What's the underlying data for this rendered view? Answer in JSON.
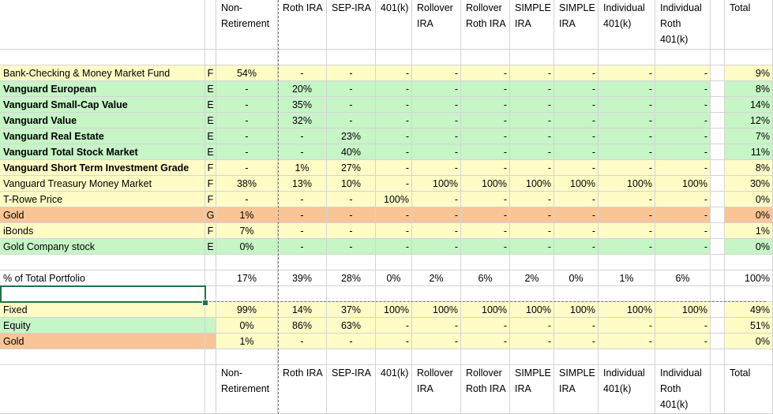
{
  "header_top": [
    "Non-\nRetirement",
    "Roth IRA",
    "SEP-IRA",
    "401(k)",
    "Rollover\nIRA",
    "Rollover\nRoth IRA",
    "SIMPLE\nIRA",
    "SIMPLE\nIRA",
    "Individual\n401(k)",
    "Individual\nRoth\n401(k)",
    "Total"
  ],
  "header_bottom": [
    "Non-\nRetirement",
    "Roth IRA",
    "SEP-IRA",
    "401(k)",
    "Rollover\nIRA",
    "Rollover\nRoth IRA",
    "SIMPLE\nIRA",
    "SIMPLE\nIRA",
    "Individual\n401(k)",
    "Individual\nRoth\n401(k)",
    "Total"
  ],
  "holdings": [
    {
      "name": "Bank-Checking & Money Market Fund",
      "bold": false,
      "type": "F",
      "color": "y",
      "values": [
        "54%",
        "-",
        "-",
        "-",
        "-",
        "-",
        "-",
        "-",
        "-",
        "-"
      ],
      "total": "9%"
    },
    {
      "name": "Vanguard European",
      "bold": true,
      "type": "E",
      "color": "g",
      "values": [
        "-",
        "20%",
        "-",
        "-",
        "-",
        "-",
        "-",
        "-",
        "-",
        "-"
      ],
      "total": "8%"
    },
    {
      "name": "Vanguard Small-Cap Value",
      "bold": true,
      "type": "E",
      "color": "g",
      "values": [
        "-",
        "35%",
        "-",
        "-",
        "-",
        "-",
        "-",
        "-",
        "-",
        "-"
      ],
      "total": "14%"
    },
    {
      "name": "Vanguard Value",
      "bold": true,
      "type": "E",
      "color": "g",
      "values": [
        "-",
        "32%",
        "-",
        "-",
        "-",
        "-",
        "-",
        "-",
        "-",
        "-"
      ],
      "total": "12%"
    },
    {
      "name": "Vanguard Real Estate",
      "bold": true,
      "type": "E",
      "color": "g",
      "values": [
        "-",
        "-",
        "23%",
        "-",
        "-",
        "-",
        "-",
        "-",
        "-",
        "-"
      ],
      "total": "7%"
    },
    {
      "name": "Vanguard Total Stock Market",
      "bold": true,
      "type": "E",
      "color": "g",
      "values": [
        "-",
        "-",
        "40%",
        "-",
        "-",
        "-",
        "-",
        "-",
        "-",
        "-"
      ],
      "total": "11%"
    },
    {
      "name": "Vanguard Short Term Investment Grade",
      "bold": true,
      "type": "F",
      "color": "y",
      "values": [
        "-",
        "1%",
        "27%",
        "-",
        "-",
        "-",
        "-",
        "-",
        "-",
        "-"
      ],
      "total": "8%"
    },
    {
      "name": "Vanguard Treasury Money Market",
      "bold": false,
      "type": "F",
      "color": "y",
      "values": [
        "38%",
        "13%",
        "10%",
        "-",
        "100%",
        "100%",
        "100%",
        "100%",
        "100%",
        "100%"
      ],
      "total": "30%"
    },
    {
      "name": "T-Rowe Price",
      "bold": false,
      "type": "F",
      "color": "y",
      "values": [
        "-",
        "-",
        "-",
        "100%",
        "-",
        "-",
        "-",
        "-",
        "-",
        "-"
      ],
      "total": "0%"
    },
    {
      "name": "Gold",
      "bold": false,
      "type": "G",
      "color": "o",
      "values": [
        "1%",
        "-",
        "-",
        "-",
        "-",
        "-",
        "-",
        "-",
        "-",
        "-"
      ],
      "total": "0%"
    },
    {
      "name": "iBonds",
      "bold": false,
      "type": "F",
      "color": "y",
      "values": [
        "7%",
        "-",
        "-",
        "-",
        "-",
        "-",
        "-",
        "-",
        "-",
        "-"
      ],
      "total": "1%"
    },
    {
      "name": "Gold Company stock",
      "bold": false,
      "type": "E",
      "color": "g",
      "values": [
        "0%",
        "-",
        "-",
        "-",
        "-",
        "-",
        "-",
        "-",
        "-",
        "-"
      ],
      "total": "0%"
    }
  ],
  "portfolio": {
    "label": " % of Total Portfolio",
    "values": [
      "17%",
      "39%",
      "28%",
      "0%",
      "2%",
      "6%",
      "2%",
      "0%",
      "1%",
      "6%"
    ],
    "total": "100%"
  },
  "allocation": [
    {
      "name": "Fixed",
      "color": "y",
      "values": [
        "99%",
        "14%",
        "37%",
        "100%",
        "100%",
        "100%",
        "100%",
        "100%",
        "100%",
        "100%"
      ],
      "total": "49%"
    },
    {
      "name": "Equity",
      "color": "g",
      "values": [
        "0%",
        "86%",
        "63%",
        "-",
        "-",
        "-",
        "-",
        "-",
        "-",
        "-"
      ],
      "total": "51%"
    },
    {
      "name": "Gold",
      "color": "o",
      "values": [
        "1%",
        "-",
        "-",
        "-",
        "-",
        "-",
        "-",
        "-",
        "-",
        "-"
      ],
      "total": "0%"
    }
  ]
}
